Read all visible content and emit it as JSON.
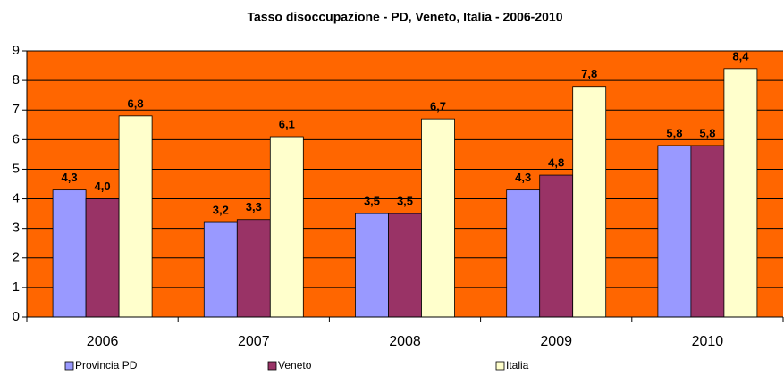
{
  "chart_data": {
    "type": "bar",
    "title": "Tasso disoccupazione - PD, Veneto, Italia - 2006-2010",
    "categories": [
      "2006",
      "2007",
      "2008",
      "2009",
      "2010"
    ],
    "series": [
      {
        "name": "Provincia PD",
        "color": "#9999ff",
        "values": [
          4.3,
          3.2,
          3.5,
          4.3,
          5.8
        ],
        "value_labels": [
          "4,3",
          "3,2",
          "3,5",
          "4,3",
          "5,8"
        ]
      },
      {
        "name": "Veneto",
        "color": "#993366",
        "values": [
          4.0,
          3.3,
          3.5,
          4.8,
          5.8
        ],
        "value_labels": [
          "4,0",
          "3,3",
          "3,5",
          "4,8",
          "5,8"
        ]
      },
      {
        "name": "Italia",
        "color": "#ffffcc",
        "values": [
          6.8,
          6.1,
          6.7,
          7.8,
          8.4
        ],
        "value_labels": [
          "6,8",
          "6,1",
          "6,7",
          "7,8",
          "8,4"
        ]
      }
    ],
    "ylim": [
      0,
      9
    ],
    "yticks": [
      0,
      1,
      2,
      3,
      4,
      5,
      6,
      7,
      8,
      9
    ],
    "grid": true,
    "plot_background": "#ff6600",
    "legend": "bottom"
  }
}
